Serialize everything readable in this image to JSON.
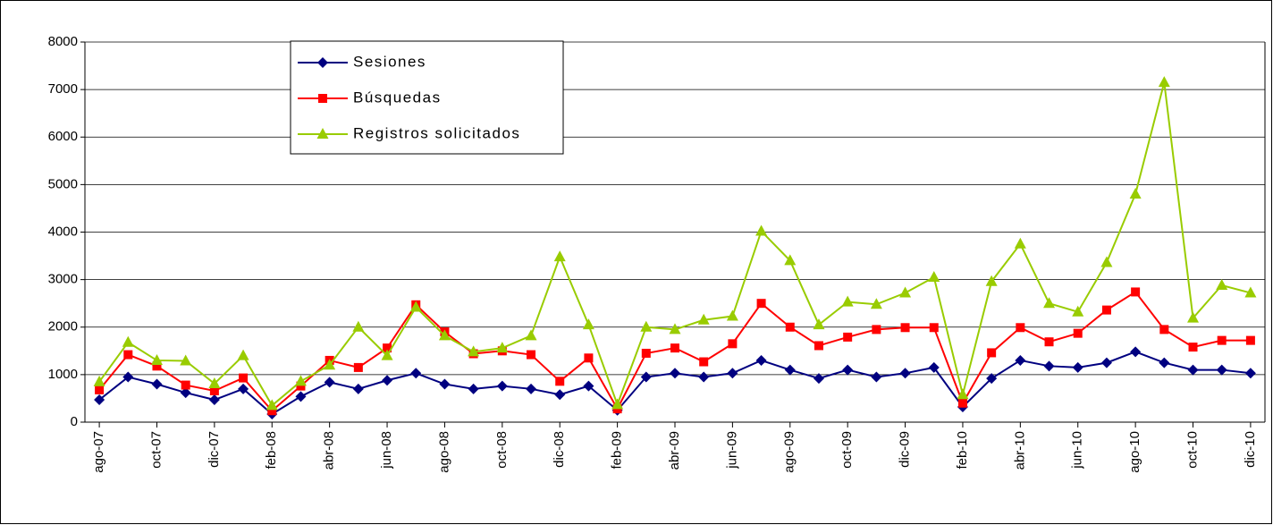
{
  "chart_data": {
    "type": "line",
    "categories": [
      "ago-07",
      null,
      "oct-07",
      null,
      "dic-07",
      null,
      "feb-08",
      null,
      "abr-08",
      null,
      "jun-08",
      null,
      "ago-08",
      null,
      "oct-08",
      null,
      "dic-08",
      null,
      "feb-09",
      null,
      "abr-09",
      null,
      "jun-09",
      null,
      "ago-09",
      null,
      "oct-09",
      null,
      "dic-09",
      null,
      "feb-10",
      null,
      "abr-10",
      null,
      "jun-10",
      null,
      "ago-10",
      null,
      "oct-10",
      null,
      "dic-10"
    ],
    "series": [
      {
        "name": "Sesiones",
        "color": "#000080",
        "marker": "diamond",
        "values": [
          470,
          950,
          800,
          620,
          470,
          700,
          170,
          540,
          840,
          700,
          880,
          1030,
          800,
          700,
          760,
          700,
          580,
          760,
          250,
          950,
          1030,
          950,
          1030,
          1300,
          1100,
          920,
          1100,
          950,
          1030,
          1150,
          320,
          920,
          1300,
          1180,
          1150,
          1250,
          1480,
          1250,
          1100,
          1100,
          1030
        ]
      },
      {
        "name": "Búsquedas",
        "color": "#ff0000",
        "marker": "square",
        "values": [
          680,
          1420,
          1180,
          780,
          660,
          930,
          240,
          760,
          1300,
          1150,
          1560,
          2470,
          1900,
          1440,
          1500,
          1420,
          860,
          1350,
          280,
          1450,
          1560,
          1270,
          1650,
          2500,
          2000,
          1610,
          1790,
          1950,
          1990,
          1990,
          400,
          1460,
          1990,
          1690,
          1870,
          2360,
          2740,
          1950,
          1580,
          1720,
          1720
        ]
      },
      {
        "name": "Registros solicitados",
        "color": "#99cc00",
        "marker": "triangle",
        "values": [
          850,
          1680,
          1300,
          1290,
          810,
          1400,
          350,
          860,
          1200,
          2000,
          1400,
          2420,
          1820,
          1480,
          1560,
          1820,
          3480,
          2050,
          370,
          2000,
          1950,
          2150,
          2230,
          4020,
          3400,
          2050,
          2530,
          2480,
          2720,
          3050,
          580,
          2960,
          3750,
          2500,
          2320,
          3360,
          4800,
          7150,
          2190,
          2880,
          2720
        ]
      }
    ],
    "ylim": [
      0,
      8000
    ],
    "yticks": [
      0,
      1000,
      2000,
      3000,
      4000,
      5000,
      6000,
      7000,
      8000
    ],
    "grid": true,
    "legend": "top-left"
  }
}
